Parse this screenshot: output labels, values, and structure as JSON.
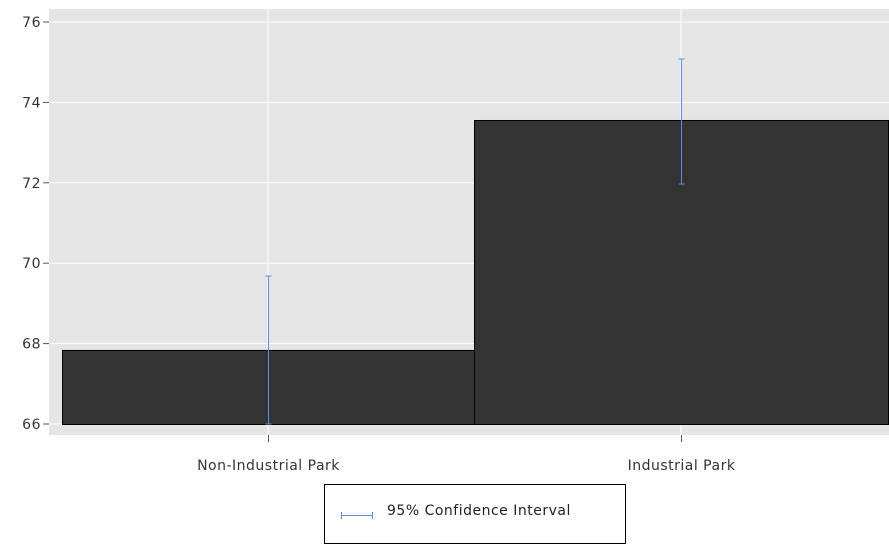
{
  "chart_data": {
    "type": "bar",
    "categories": [
      "Non-Industrial Park",
      "Industrial Park"
    ],
    "values": [
      67.83,
      73.55
    ],
    "error_bars": [
      {
        "low": 66.0,
        "high": 69.68
      },
      {
        "low": 71.97,
        "high": 75.08
      }
    ],
    "ylim": [
      66,
      76
    ],
    "yticks": [
      "66",
      "68",
      "70",
      "72",
      "74",
      "76"
    ],
    "grid": true,
    "legend_position": "bottom",
    "legend": {
      "label": "95% Confidence Interval"
    },
    "colors": {
      "bar": "#333333",
      "error_bar": "#5b8ee6",
      "plot_bg": "#e5e5e5",
      "grid": "#ffffff"
    }
  }
}
